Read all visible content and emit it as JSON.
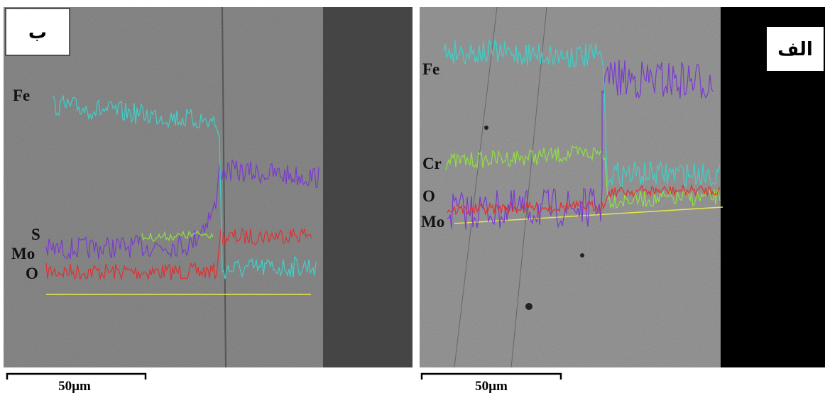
{
  "panels": [
    {
      "label": "ب",
      "elements": [
        "Fe",
        "S",
        "Mo",
        "O"
      ],
      "scale_bar": "50µm"
    },
    {
      "label": "الف",
      "elements": [
        "Fe",
        "Cr",
        "O",
        "Mo"
      ],
      "scale_bar": "50µm"
    }
  ]
}
